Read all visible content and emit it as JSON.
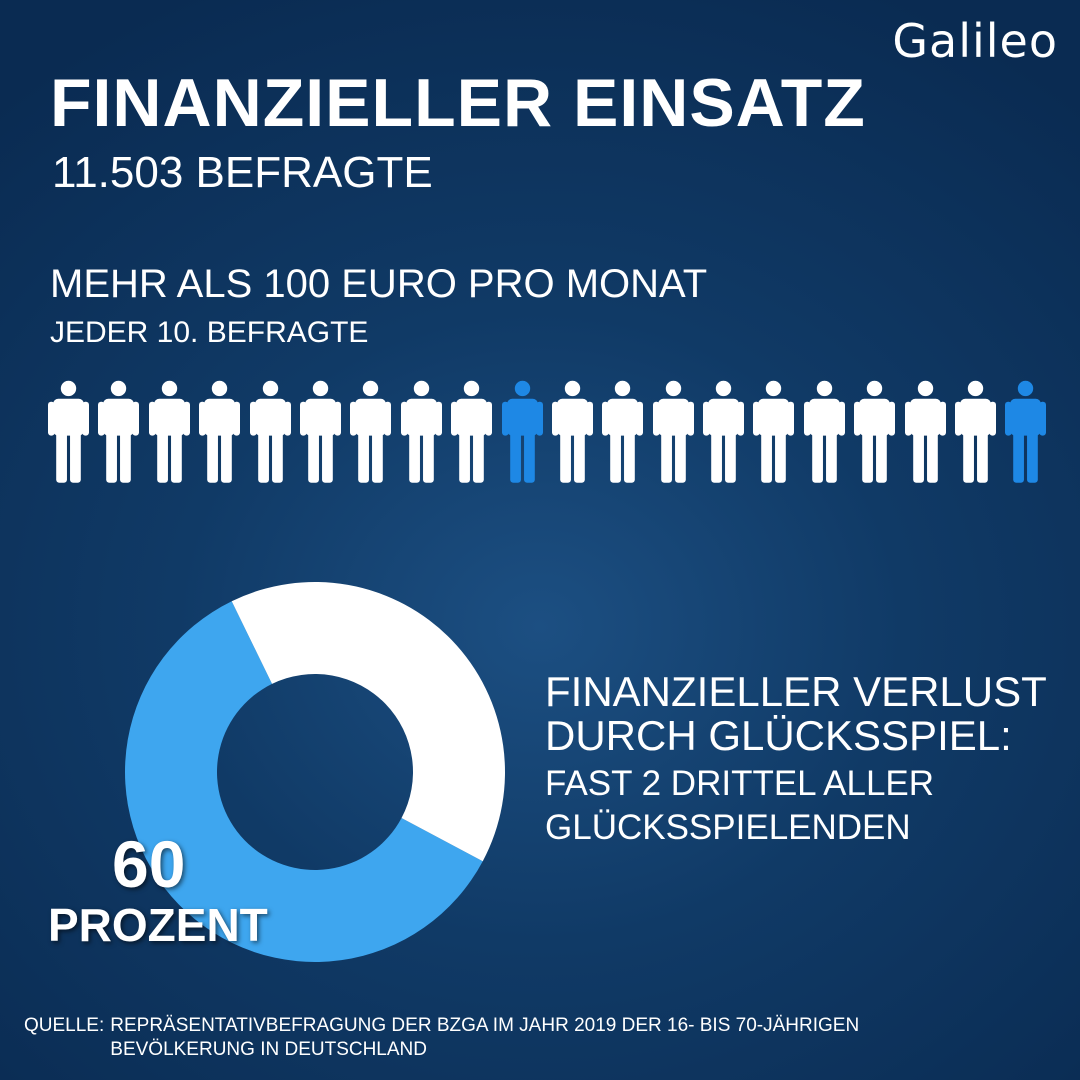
{
  "brand": {
    "logo_text": "Galileo"
  },
  "header": {
    "title": "FINANZIELLER EINSATZ",
    "subtitle": "11.503 BEFRAGTE"
  },
  "stat1": {
    "headline": "MEHR ALS 100 EURO PRO MONAT",
    "sub": "JEDER 10. BEFRAGTE",
    "people": {
      "total": 20,
      "highlighted_positions": [
        10,
        20
      ]
    }
  },
  "stat2": {
    "headline_lines": [
      "FINANZIELLER VERLUST",
      "DURCH GLÜCKSSPIEL:"
    ],
    "sub_lines": [
      "FAST 2 DRITTEL ALLER",
      "GLÜCKSSPIELENDEN"
    ],
    "percent_value": "60",
    "percent_label": "PROZENT"
  },
  "chart_data": {
    "type": "pie",
    "values": [
      60,
      40
    ],
    "colors": [
      "#3ea6ef",
      "#ffffff"
    ]
  },
  "colors": {
    "background": "#0d3560",
    "highlight_person": "#1e88e5",
    "person": "#ffffff",
    "donut_accent": "#3ea6ef"
  },
  "source": {
    "prefix": "QUELLE:",
    "line1": "REPRÄSENTATIVBEFRAGUNG DER BZGA IM JAHR 2019 DER 16- BIS 70-JÄHRIGEN",
    "line2": "BEVÖLKERUNG IN DEUTSCHLAND"
  }
}
